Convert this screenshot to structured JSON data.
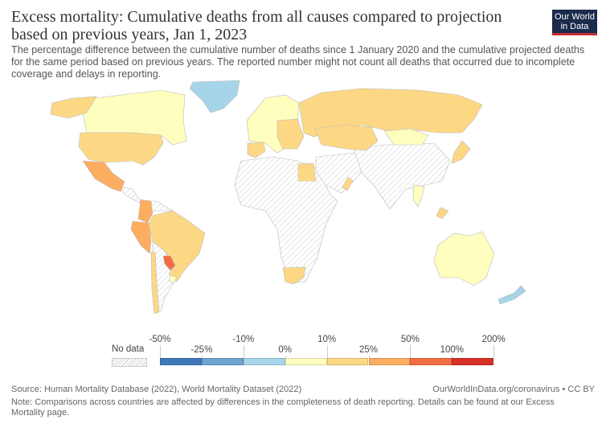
{
  "header": {
    "title": "Excess mortality: Cumulative deaths from all causes compared to projection based on previous years, Jan 1, 2023",
    "subtitle": "The percentage difference between the cumulative number of deaths since 1 January 2020 and the cumulative projected deaths for the same period based on previous years. The reported number might not count all deaths that occurred due to incomplete coverage and delays in reporting.",
    "logo": "Our World in Data"
  },
  "legend": {
    "no_data": "No data",
    "bins": [
      {
        "from": "-50%",
        "color": "#3f78b8"
      },
      {
        "from": "-25%",
        "color": "#6fa4cf"
      },
      {
        "from": "-10%",
        "color": "#a6d5e9"
      },
      {
        "from": "0%",
        "color": "#fefebe"
      },
      {
        "from": "10%",
        "color": "#fdd884"
      },
      {
        "from": "25%",
        "color": "#fdad60"
      },
      {
        "from": "50%",
        "color": "#f46d43"
      },
      {
        "from": "100%",
        "color": "#d73027"
      }
    ],
    "max": "200%"
  },
  "footer": {
    "source": "Source: Human Mortality Database (2022), World Mortality Dataset (2022)",
    "url": "OurWorldInData.org/coronavirus • CC BY",
    "note": "Note: Comparisons across countries are affected by differences in the completeness of death reporting. Details can be found at our Excess Mortality page."
  }
}
